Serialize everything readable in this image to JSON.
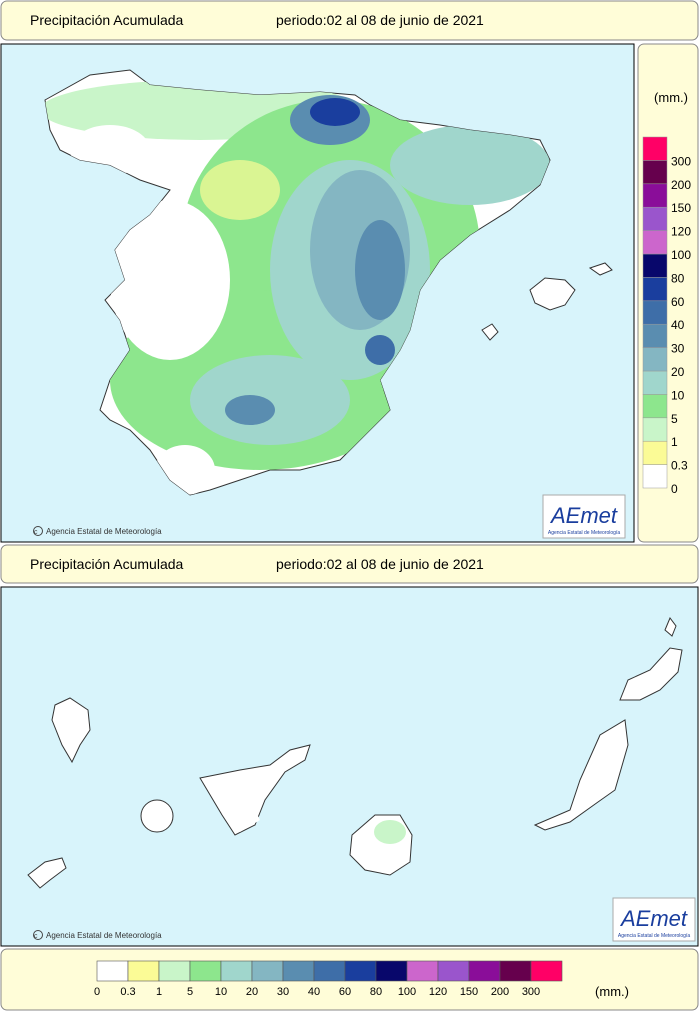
{
  "maps": [
    {
      "header": {
        "title": "Precipitación Acumulada",
        "period": "periodo:02 al 08 de junio de 2021"
      },
      "credit": "Agencia Estatal de Meteorología",
      "logo": {
        "name": "AEmet",
        "subtitle": "Agencia Estatal de Meteorología"
      }
    },
    {
      "header": {
        "title": "Precipitación Acumulada",
        "period": "periodo:02 al 08 de junio de 2021"
      },
      "credit": "Agencia Estatal de Meteorología",
      "logo": {
        "name": "AEmet",
        "subtitle": "Agencia Estatal de Meteorología"
      }
    }
  ],
  "legend": {
    "unit": "(mm.)",
    "levels": [
      {
        "value": 0,
        "color": "#ffffff"
      },
      {
        "value": 0.3,
        "color": "#fbfb96"
      },
      {
        "value": 1,
        "color": "#c9f5c9"
      },
      {
        "value": 5,
        "color": "#8de68d"
      },
      {
        "value": 10,
        "color": "#a0d6cc"
      },
      {
        "value": 20,
        "color": "#84b6c2"
      },
      {
        "value": 30,
        "color": "#5a8db0"
      },
      {
        "value": 40,
        "color": "#3e6ea8"
      },
      {
        "value": 60,
        "color": "#1a3e9e"
      },
      {
        "value": 80,
        "color": "#08076b"
      },
      {
        "value": 100,
        "color": "#cc66cc"
      },
      {
        "value": 120,
        "color": "#9a55cc"
      },
      {
        "value": 150,
        "color": "#8a0d99"
      },
      {
        "value": 200,
        "color": "#66004d"
      },
      {
        "value": 300,
        "color": "#ff0066"
      }
    ]
  },
  "bottom_legend": {
    "unit": "(mm.)"
  }
}
